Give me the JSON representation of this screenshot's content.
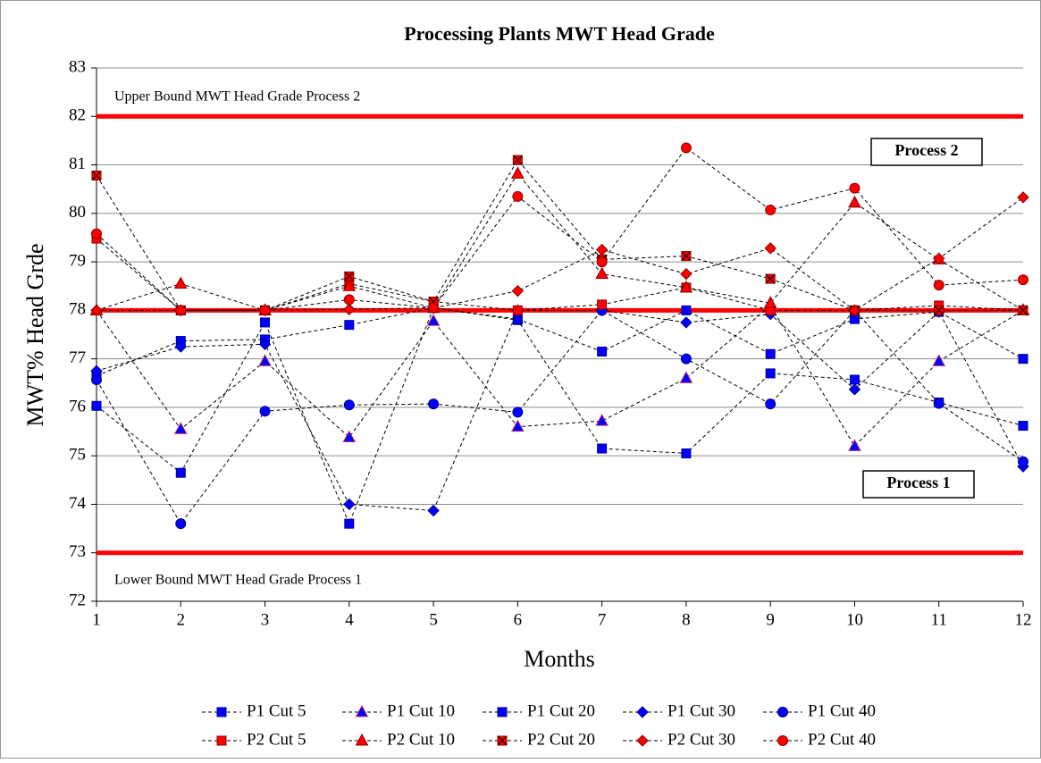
{
  "chart_data": {
    "type": "line",
    "title": "Processing Plants MWT Head Grade",
    "x_label": "Months",
    "y_label": "MWT%  Head Grde",
    "x": [
      1,
      2,
      3,
      4,
      5,
      6,
      7,
      8,
      9,
      10,
      11,
      12
    ],
    "xlim": [
      1,
      12
    ],
    "xticks": [
      1,
      2,
      3,
      4,
      5,
      6,
      7,
      8,
      9,
      10,
      11,
      12
    ],
    "ylim": [
      72,
      83
    ],
    "yticks": [
      72,
      73,
      74,
      75,
      76,
      77,
      78,
      79,
      80,
      81,
      82,
      83
    ],
    "grid": true,
    "hlines": [
      82,
      78,
      73
    ],
    "hline_color": "#ff0000",
    "annotations": [
      "Upper Bound MWT Head Grade Process 2",
      "Lower Bound MWT Head Grade Process 1",
      "Process 2",
      "Process 1"
    ],
    "series": [
      {
        "name": "P1 Cut 5",
        "color": "#0000ff",
        "marker": "square",
        "values": [
          76.03,
          74.65,
          77.75,
          73.6,
          78.05,
          77.8,
          75.15,
          75.05,
          76.7,
          76.57,
          76.1,
          75.62
        ]
      },
      {
        "name": "P1 Cut 10",
        "color": "#0000ff",
        "marker": "triangle",
        "values": [
          78.0,
          75.55,
          76.95,
          75.38,
          77.78,
          75.6,
          75.72,
          76.6,
          78.1,
          75.2,
          76.95,
          78.0
        ]
      },
      {
        "name": "P1 Cut 20",
        "color": "#0000ff",
        "marker": "square",
        "values": [
          76.65,
          77.37,
          77.4,
          77.7,
          78.05,
          77.82,
          77.15,
          78.0,
          77.1,
          77.82,
          77.97,
          77.0
        ]
      },
      {
        "name": "P1 Cut 30",
        "color": "#0000ff",
        "marker": "diamond",
        "values": [
          76.75,
          77.25,
          77.3,
          74.0,
          73.87,
          78.0,
          78.0,
          77.75,
          77.92,
          76.37,
          77.97,
          74.78
        ]
      },
      {
        "name": "P1 Cut 40",
        "color": "#0000ff",
        "marker": "circle",
        "values": [
          76.57,
          73.6,
          75.92,
          76.05,
          76.07,
          75.9,
          78.0,
          77.0,
          76.07,
          78.0,
          76.08,
          74.88
        ]
      },
      {
        "name": "P2 Cut 5",
        "color": "#ff0000",
        "marker": "square",
        "values": [
          79.48,
          78.0,
          78.0,
          78.55,
          78.18,
          78.0,
          78.12,
          78.47,
          78.0,
          78.0,
          78.1,
          78.0
        ]
      },
      {
        "name": "P2 Cut 10",
        "color": "#ff0000",
        "marker": "triangle",
        "values": [
          78.0,
          78.55,
          78.0,
          78.5,
          78.05,
          80.82,
          78.75,
          78.47,
          78.15,
          80.22,
          79.05,
          78.0
        ]
      },
      {
        "name": "P2 Cut 20",
        "color": "#ff0000",
        "marker": "square-x",
        "values": [
          80.78,
          78.0,
          78.0,
          78.7,
          78.18,
          81.1,
          79.05,
          79.12,
          78.65,
          78.0,
          78.0,
          78.0
        ]
      },
      {
        "name": "P2 Cut 30",
        "color": "#ff0000",
        "marker": "diamond",
        "values": [
          78.0,
          78.0,
          78.0,
          78.02,
          78.05,
          78.4,
          79.25,
          78.75,
          79.28,
          78.0,
          79.07,
          80.33
        ]
      },
      {
        "name": "P2 Cut 40",
        "color": "#ff0000",
        "marker": "circle",
        "values": [
          79.58,
          78.0,
          78.0,
          78.22,
          78.05,
          80.35,
          79.0,
          81.35,
          80.07,
          80.52,
          78.52,
          78.63
        ]
      }
    ]
  }
}
